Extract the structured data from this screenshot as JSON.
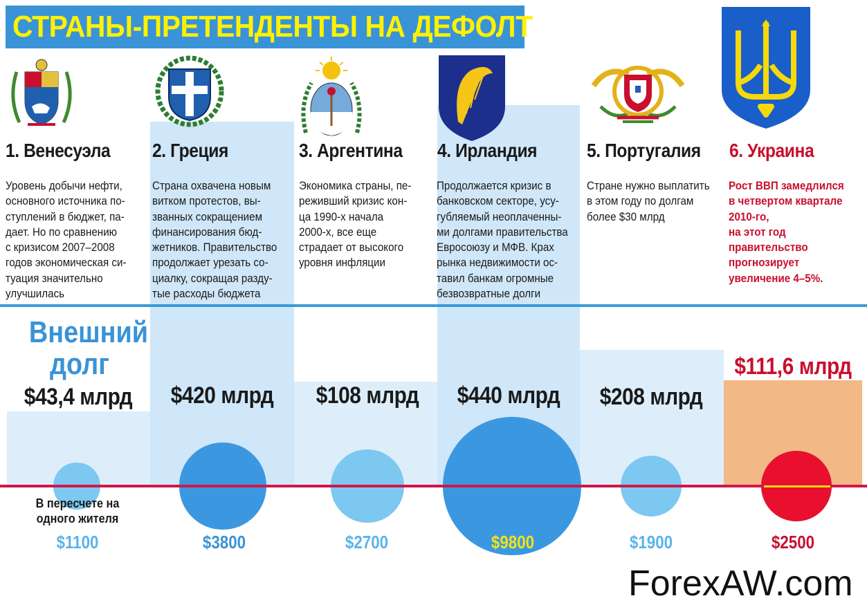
{
  "title": "СТРАНЫ-ПРЕТЕНДЕНТЫ НА ДЕФОЛТ",
  "labels": {
    "external_debt": "Внешний долг",
    "per_capita": "В пересчете на одного жителя"
  },
  "watermark": "ForexAW.com",
  "colors": {
    "title_bg": "#3a93d6",
    "title_text": "#fff200",
    "top_column": "#cfe7f8",
    "divider_blue": "#3a9bd8",
    "baseline_red": "#d4154a",
    "circle_light": "#7cc8f0",
    "circle_dark": "#3b98e0",
    "ukraine_accent": "#c8102e",
    "ukraine_bar": "#f2b885"
  },
  "countries": [
    {
      "name": "1. Венесуэла",
      "emblem": "venezuela-coat-of-arms",
      "description": "Уровень добычи нефти,\nосновного источника по-\nступлений в бюджет, па-\nдает. Но по сравнению\nс кризисом 2007–2008\nгодов экономическая си-\nтуация значительно\nулучшилась",
      "debt_label": "$43,4 млрд",
      "per_capita_label": "$1100"
    },
    {
      "name": "2. Греция",
      "emblem": "greece-coat-of-arms",
      "description": "Страна охвачена новым\nвитком протестов, вы-\nзванных сокращением\nфинансирования бюд-\nжетников. Правительство\nпродолжает урезать со-\nциалку, сокращая разду-\nтые расходы бюджета",
      "debt_label": "$420 млрд",
      "per_capita_label": "$3800"
    },
    {
      "name": "3. Аргентина",
      "emblem": "argentina-coat-of-arms",
      "description": "Экономика страны, пе-\nреживший кризис кон-\nца 1990-х начала\n2000-х, все еще\nстрадает от высокого\nуровня инфляции",
      "debt_label": "$108 млрд",
      "per_capita_label": "$2700"
    },
    {
      "name": "4. Ирландия",
      "emblem": "ireland-harp-shield",
      "description": "Продолжается кризис в\nбанковском секторе, усу-\nгубляемый неоплаченны-\nми долгами правительства\nЕвросоюзу и МФВ.  Крах\nрынка недвижимости ос-\nтавил банкам огромные\nбезвозвратные долги",
      "debt_label": "$440 млрд",
      "per_capita_label": "$9800"
    },
    {
      "name": "5. Португалия",
      "emblem": "portugal-coat-of-arms",
      "description": "Стране нужно выплатить\nв этом году по долгам\nболее $30 млрд",
      "debt_label": "$208 млрд",
      "per_capita_label": "$1900"
    },
    {
      "name": "6. Украина",
      "emblem": "ukraine-trident",
      "description": "Рост ВВП замедлился\nв четвертом квартале\n2010-го,\nна этот год\nправительство\nпрогнозирует\nувеличение 4–5%.",
      "debt_label": "$111,6 млрд",
      "per_capita_label": "$2500"
    }
  ],
  "chart_data": {
    "type": "bar",
    "title": "СТРАНЫ-ПРЕТЕНДЕНТЫ НА ДЕФОЛТ",
    "categories": [
      "Венесуэла",
      "Греция",
      "Аргентина",
      "Ирландия",
      "Португалия",
      "Украина"
    ],
    "series": [
      {
        "name": "Внешний долг",
        "unit": "$ млрд",
        "values": [
          43.4,
          420,
          108,
          440,
          208,
          111.6
        ]
      },
      {
        "name": "В пересчете на одного жителя",
        "unit": "$",
        "values": [
          1100,
          3800,
          2700,
          9800,
          1900,
          2500
        ]
      }
    ]
  }
}
